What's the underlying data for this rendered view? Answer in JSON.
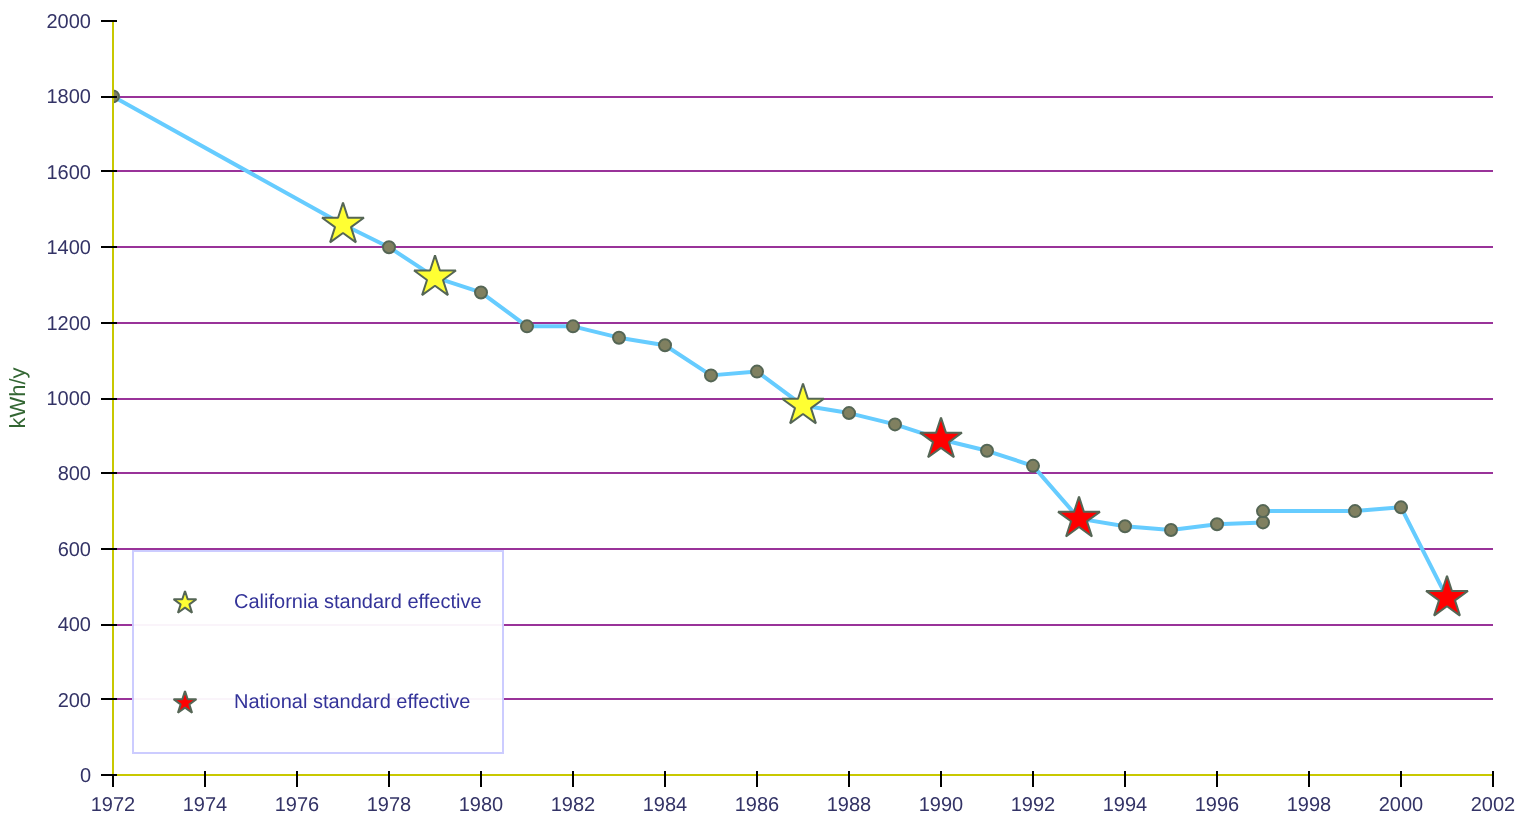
{
  "chart_data": {
    "type": "line",
    "ylabel": "kWh/y",
    "xlim": [
      1972,
      2002
    ],
    "ylim": [
      0,
      2000
    ],
    "xticks": [
      1972,
      1974,
      1976,
      1978,
      1980,
      1982,
      1984,
      1986,
      1988,
      1990,
      1992,
      1994,
      1996,
      1998,
      2000,
      2002
    ],
    "yticks": [
      0,
      200,
      400,
      600,
      800,
      1000,
      1200,
      1400,
      1600,
      1800,
      2000
    ],
    "grid": "y",
    "legend": "bottom left",
    "series": [
      {
        "color": "#66ccff",
        "marker": "circle",
        "x": [
          1972,
          1977,
          1978,
          1979,
          1980,
          1981,
          1982,
          1983,
          1984,
          1985,
          1986,
          1987,
          1988,
          1989,
          1990,
          1991,
          1992,
          1993,
          1994,
          1995,
          1996,
          1997,
          1997,
          1999,
          2000,
          2001
        ],
        "values": [
          1800,
          1460,
          1400,
          1320,
          1280,
          1190,
          1190,
          1160,
          1140,
          1060,
          1070,
          980,
          960,
          930,
          890,
          860,
          820,
          680,
          660,
          650,
          665,
          670,
          700,
          700,
          710,
          470
        ]
      },
      {
        "type": "scatter",
        "name": "California standard effective",
        "color": "#ffff33",
        "marker": "star",
        "x": [
          1977,
          1979,
          1987
        ],
        "values": [
          1460,
          1320,
          980
        ]
      },
      {
        "type": "scatter",
        "name": "National standard effective",
        "color": "#ff0000",
        "marker": "star",
        "x": [
          1990,
          1993,
          2001
        ],
        "values": [
          890,
          680,
          470
        ]
      }
    ]
  }
}
